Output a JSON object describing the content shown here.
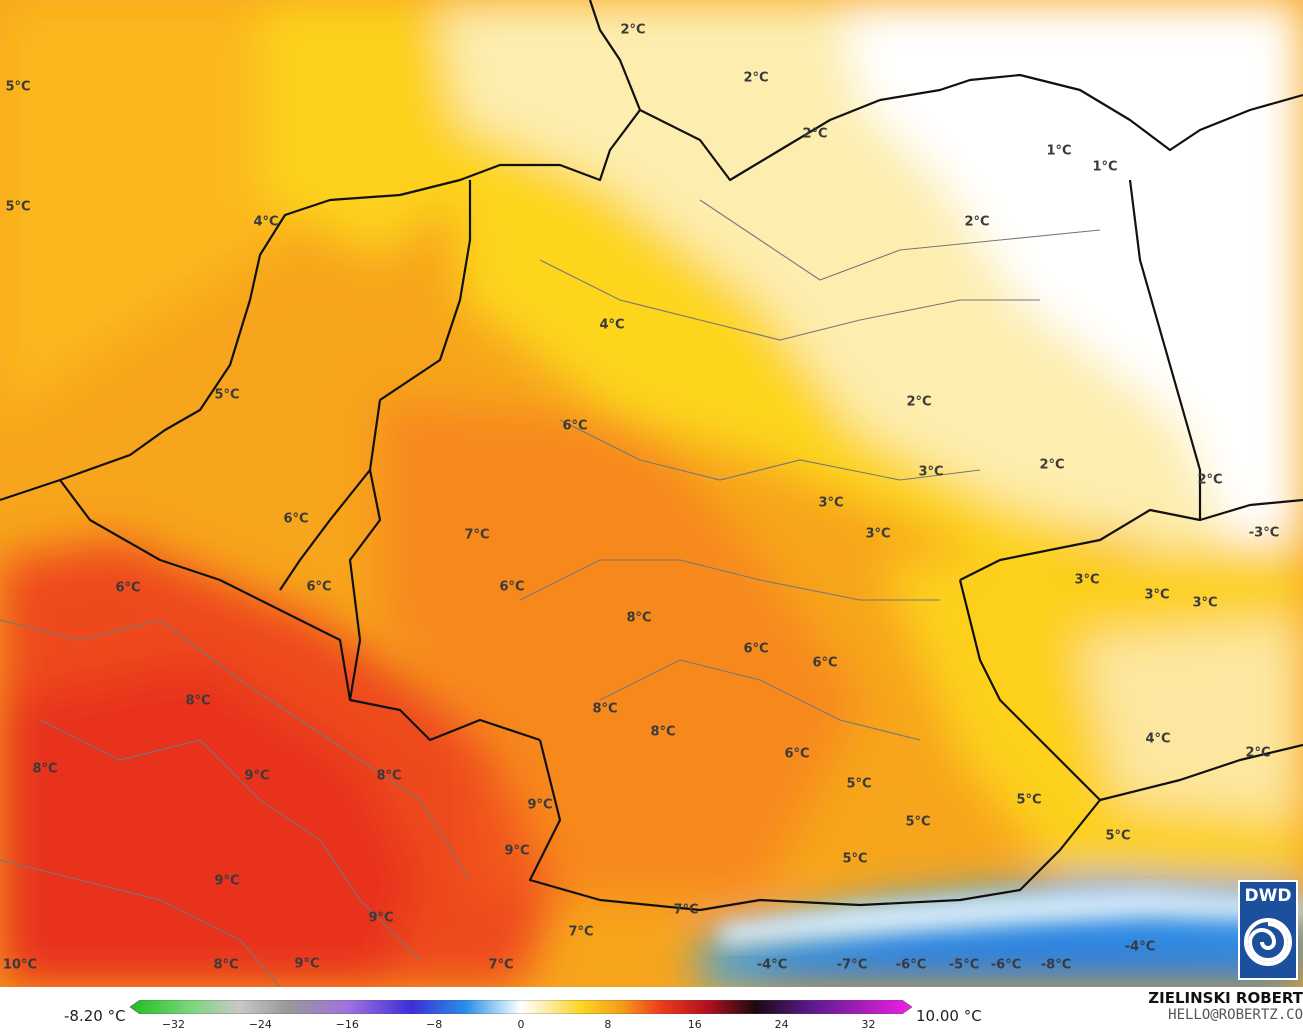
{
  "map": {
    "legend": {
      "min_label": "-8.20 °C",
      "max_label": "10.00 °C",
      "ticks": [
        "−32",
        "−24",
        "−16",
        "−8",
        "0",
        "8",
        "16",
        "24",
        "32"
      ],
      "scale_min": -36,
      "scale_max": 36
    },
    "credit": {
      "author": "ZIELINSKI ROBERT",
      "email": "HELLO@ROBERTZ.CO"
    },
    "logo": {
      "text": "DWD",
      "color": "#1c4f9c"
    },
    "temperature_labels": [
      "5°C",
      "5°C",
      "4°C",
      "2°C",
      "2°C",
      "2°C",
      "1°C",
      "1°C",
      "2°C",
      "4°C",
      "5°C",
      "6°C",
      "2°C",
      "2°C",
      "2°C",
      "3°C",
      "3°C",
      "3°C",
      "-3°C",
      "6°C",
      "7°C",
      "6°C",
      "6°C",
      "6°C",
      "3°C",
      "3°C",
      "3°C",
      "8°C",
      "6°C",
      "6°C",
      "8°C",
      "8°C",
      "8°C",
      "4°C",
      "2°C",
      "8°C",
      "9°C",
      "8°C",
      "6°C",
      "5°C",
      "9°C",
      "5°C",
      "5°C",
      "5°C",
      "9°C",
      "5°C",
      "9°C",
      "9°C",
      "7°C",
      "-4°C",
      "7°C",
      "10°C",
      "8°C",
      "9°C",
      "7°C",
      "-4°C",
      "-7°C",
      "-6°C",
      "-5°C",
      "-6°C",
      "-8°C"
    ],
    "colors": {
      "warm_red": "#f04a1a",
      "orange": "#f6a21b",
      "yellow": "#fcd21c",
      "pale_yellow": "#fdf0b8",
      "cold_blue": "#3aa0e8"
    }
  }
}
